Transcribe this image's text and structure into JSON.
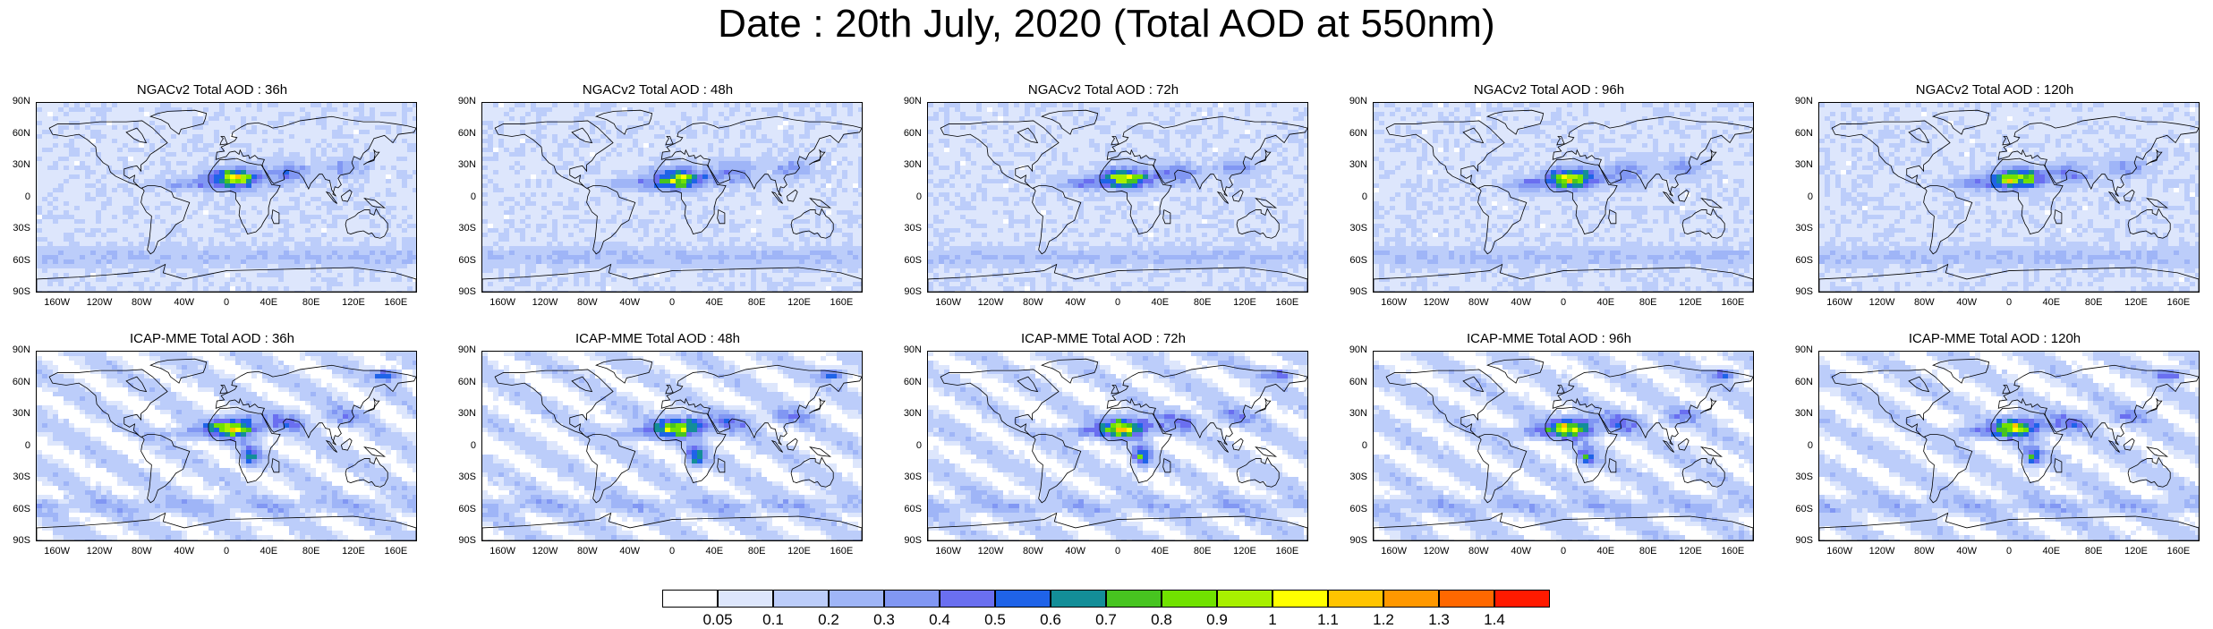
{
  "title": "Date : 20th July, 2020 (Total AOD at 550nm)",
  "lat_labels": [
    "90N",
    "60N",
    "30N",
    "0",
    "30S",
    "60S",
    "90S"
  ],
  "lon_labels": [
    "160W",
    "120W",
    "80W",
    "40W",
    "0",
    "40E",
    "80E",
    "120E",
    "160E"
  ],
  "panels": [
    {
      "title": "NGACv2 Total AOD : 36h",
      "model": "ngac"
    },
    {
      "title": "NGACv2 Total AOD : 48h",
      "model": "ngac"
    },
    {
      "title": "NGACv2 Total AOD : 72h",
      "model": "ngac"
    },
    {
      "title": "NGACv2 Total AOD : 96h",
      "model": "ngac"
    },
    {
      "title": "NGACv2 Total AOD : 120h",
      "model": "ngac"
    },
    {
      "title": "ICAP-MME Total AOD : 36h",
      "model": "icap"
    },
    {
      "title": "ICAP-MME Total AOD : 48h",
      "model": "icap"
    },
    {
      "title": "ICAP-MME Total AOD : 72h",
      "model": "icap"
    },
    {
      "title": "ICAP-MME Total AOD : 96h",
      "model": "icap"
    },
    {
      "title": "ICAP-MME Total AOD : 120h",
      "model": "icap"
    }
  ],
  "colorbar": {
    "labels": [
      "0.05",
      "0.1",
      "0.2",
      "0.3",
      "0.4",
      "0.5",
      "0.6",
      "0.7",
      "0.8",
      "0.9",
      "1",
      "1.1",
      "1.2",
      "1.3",
      "1.4"
    ],
    "colors": [
      "#ffffff",
      "#dde6fc",
      "#bccdfa",
      "#9fb5f7",
      "#8197f3",
      "#6a6ff0",
      "#1f63e8",
      "#138e98",
      "#47c420",
      "#71e200",
      "#a8f000",
      "#ffff00",
      "#ffc400",
      "#ff9800",
      "#ff6800",
      "#ff1a00"
    ]
  }
}
